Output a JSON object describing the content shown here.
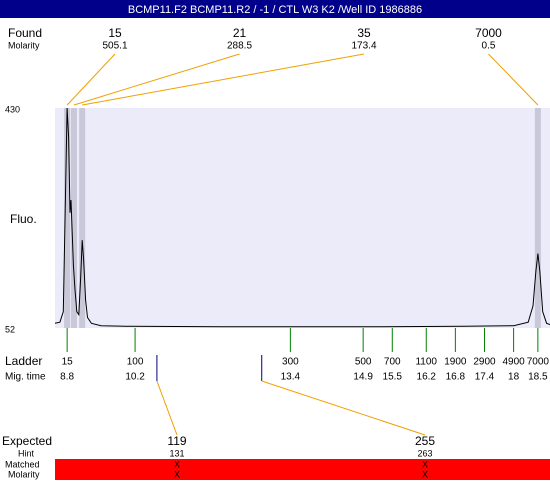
{
  "title": "BCMP11.F2  BCMP11.R2 / -1 / CTL W3 K2 /Well ID 1986886",
  "found": {
    "label": "Found",
    "molarity_label": "Molarity",
    "peaks": [
      {
        "size": "15",
        "molarity": "505.1",
        "time": 8.8
      },
      {
        "size": "21",
        "molarity": "288.5",
        "time": 8.94
      },
      {
        "size": "35",
        "molarity": "173.4",
        "time": 9.11
      },
      {
        "size": "7000",
        "molarity": "0.5",
        "time": 18.5
      }
    ]
  },
  "chart_data": {
    "type": "line",
    "y_label": "Fluo.",
    "color": "#000000",
    "fill": "#e8e8f8",
    "ylim": [
      52,
      430
    ],
    "yticks": [
      430,
      52
    ],
    "xlim": [
      8.55,
      18.75
    ],
    "x": [
      8.55,
      8.65,
      8.72,
      8.77,
      8.8,
      8.83,
      8.86,
      8.88,
      8.93,
      8.96,
      9.0,
      9.04,
      9.08,
      9.11,
      9.14,
      9.18,
      9.22,
      9.3,
      9.5,
      10,
      12,
      15,
      17,
      18,
      18.3,
      18.4,
      18.46,
      18.5,
      18.54,
      18.6,
      18.68,
      18.75
    ],
    "values": [
      60,
      62,
      80,
      300,
      430,
      380,
      250,
      272,
      160,
      120,
      80,
      75,
      140,
      203,
      170,
      100,
      70,
      60,
      56,
      55,
      54,
      54,
      55,
      56,
      62,
      90,
      150,
      180,
      150,
      80,
      60,
      58
    ]
  },
  "ladder": {
    "label": "Ladder",
    "time_label": "Mig. time",
    "color": "#008000",
    "sizes": [
      "15",
      "100",
      "300",
      "500",
      "700",
      "1100",
      "1900",
      "2900",
      "4900",
      "7000"
    ],
    "mig_times": [
      8.8,
      10.2,
      13.4,
      14.9,
      15.5,
      16.2,
      16.8,
      17.4,
      18,
      18.5
    ]
  },
  "expected": {
    "label": "Expected",
    "hint_label": "Hint",
    "matched_label": "Matched",
    "molarity_label": "Molarity",
    "items": [
      {
        "size": "119",
        "hint": "131",
        "matched": "X",
        "molarity": "X",
        "time": 10.65
      },
      {
        "size": "255",
        "hint": "263",
        "matched": "X",
        "molarity": "X",
        "time": 12.81
      }
    ]
  }
}
